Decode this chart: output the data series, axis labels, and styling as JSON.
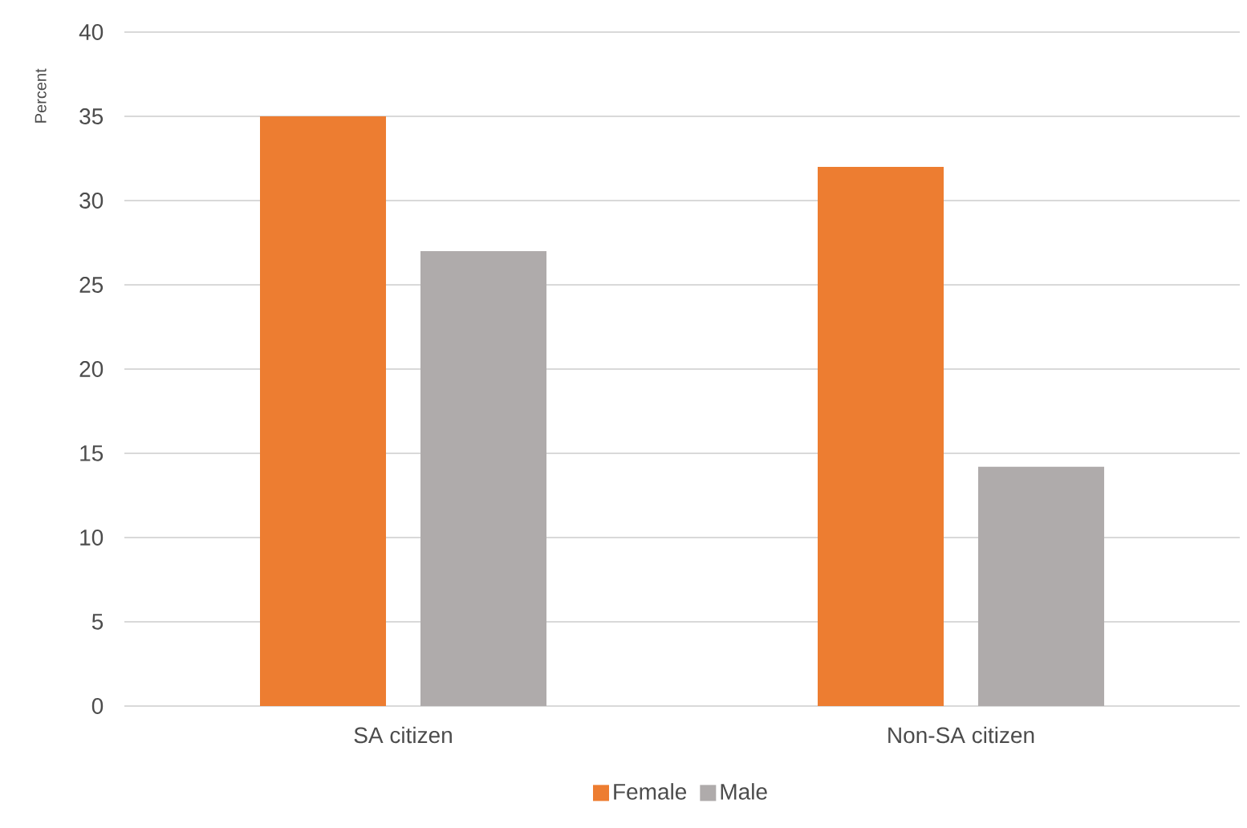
{
  "chart_data": {
    "type": "bar",
    "ylabel": "Percent",
    "categories": [
      "SA citizen",
      "Non-SA citizen"
    ],
    "series": [
      {
        "name": "Female",
        "color": "#ed7d31",
        "values": [
          35,
          32
        ]
      },
      {
        "name": "Male",
        "color": "#afabab",
        "values": [
          27,
          14.2
        ]
      }
    ],
    "ylim": [
      0,
      40
    ],
    "yticks": [
      0,
      5,
      10,
      15,
      20,
      25,
      30,
      35,
      40
    ],
    "grid": "y",
    "legend": "bottom"
  }
}
